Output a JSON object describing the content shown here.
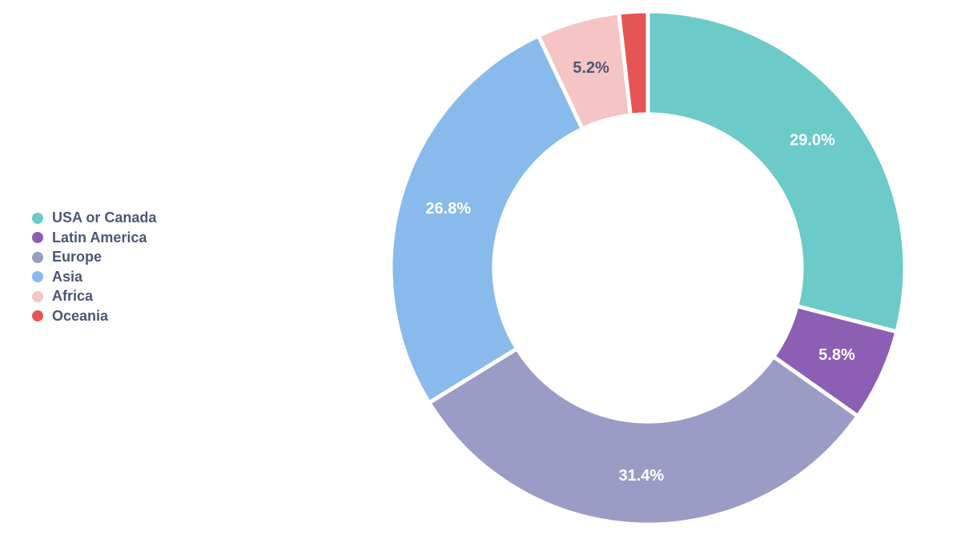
{
  "chart_data": {
    "type": "pie",
    "variant": "donut",
    "legend_position": "left",
    "categories": [
      "USA or Canada",
      "Latin America",
      "Europe",
      "Asia",
      "Africa",
      "Oceania"
    ],
    "values": [
      29.0,
      5.8,
      31.4,
      26.8,
      5.2,
      1.8
    ],
    "value_labels": [
      "29.0%",
      "5.8%",
      "31.4%",
      "26.8%",
      "5.2%",
      ""
    ],
    "colors": [
      "#6ccac9",
      "#8c5fb5",
      "#9a9cc6",
      "#88bbeb",
      "#f5c4c4",
      "#e65555"
    ],
    "label_colors": [
      "#ffffff",
      "#ffffff",
      "#ffffff",
      "#ffffff",
      "#4c5773",
      "#ffffff"
    ]
  }
}
